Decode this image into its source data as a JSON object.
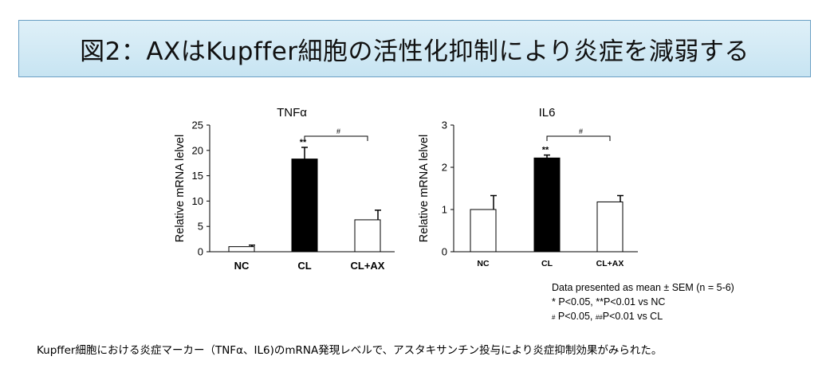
{
  "header": {
    "title": "図2：AXはKupffer細胞の活性化抑制により炎症を減弱する"
  },
  "chart_data": [
    {
      "type": "bar",
      "title": "TNFα",
      "xlabel": "",
      "ylabel": "Relative mRNA lelvel",
      "ylim": [
        0,
        25
      ],
      "yticks": [
        0,
        5,
        10,
        15,
        20,
        25
      ],
      "categories": [
        "NC",
        "CL",
        "CL+AX"
      ],
      "values": [
        1.0,
        18.3,
        6.3
      ],
      "errors": [
        0.3,
        2.3,
        1.9
      ],
      "fills": [
        "#ffffff",
        "#000000",
        "#ffffff"
      ],
      "significance": [
        "",
        "**",
        ""
      ],
      "bracket": {
        "from": 1,
        "to": 2,
        "label": "#"
      }
    },
    {
      "type": "bar",
      "title": "IL6",
      "xlabel": "",
      "ylabel": "Relative mRNA lelvel",
      "ylim": [
        0,
        3
      ],
      "yticks": [
        0,
        1,
        2,
        3
      ],
      "categories": [
        "NC",
        "CL",
        "CL+AX"
      ],
      "values": [
        1.0,
        2.22,
        1.18
      ],
      "errors": [
        0.33,
        0.07,
        0.15
      ],
      "fills": [
        "#ffffff",
        "#000000",
        "#ffffff"
      ],
      "significance": [
        "",
        "**",
        ""
      ],
      "bracket": {
        "from": 1,
        "to": 2,
        "label": "#"
      }
    }
  ],
  "notes": {
    "line1": "Data presented as mean ± SEM (n = 5-6)",
    "line2": "* P<0.05, **P<0.01 vs  NC",
    "line3a_mark": "#",
    "line3a": " P<0.05, ",
    "line3b_mark": "##",
    "line3b": "P<0.01 vs  CL"
  },
  "caption": "Kupffer細胞における炎症マーカー（TNFα、IL6)のmRNA発現レベルで、アスタキサンチン投与により炎症抑制効果がみられた。"
}
